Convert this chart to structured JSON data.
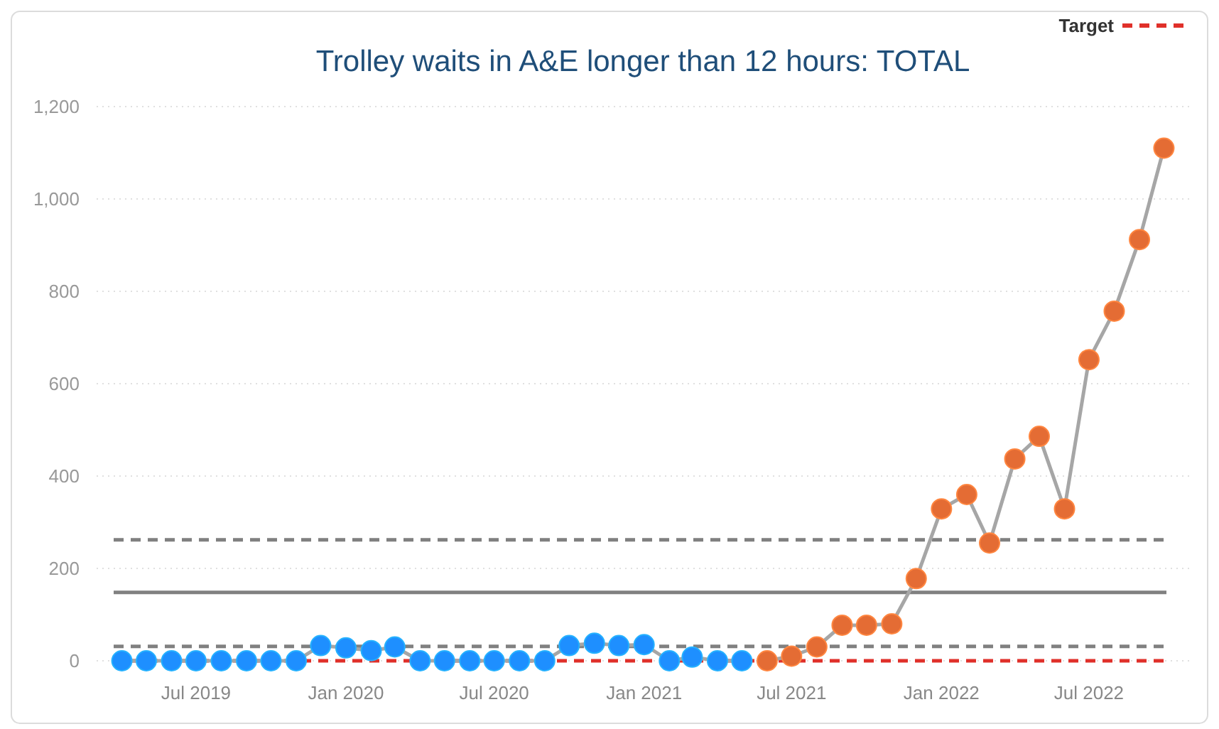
{
  "chart_data": {
    "type": "line",
    "title": "Trolley waits in A&E longer than 12 hours: TOTAL",
    "series": [
      {
        "color": "#1e8fff",
        "x": [
          "2019-04",
          "2019-05",
          "2019-06",
          "2019-07",
          "2019-08",
          "2019-09",
          "2019-10",
          "2019-11",
          "2019-12",
          "2020-01",
          "2020-02",
          "2020-03",
          "2020-04",
          "2020-05",
          "2020-06",
          "2020-07",
          "2020-08",
          "2020-09",
          "2020-10",
          "2020-11",
          "2020-12",
          "2021-01",
          "2021-02",
          "2021-03",
          "2021-04",
          "2021-05"
        ],
        "values": [
          0,
          0,
          0,
          0,
          0,
          0,
          0,
          0,
          33,
          28,
          22,
          30,
          0,
          0,
          0,
          0,
          0,
          0,
          33,
          38,
          33,
          35,
          0,
          8,
          0,
          0
        ]
      },
      {
        "color": "#e46c34",
        "x": [
          "2021-06",
          "2021-07",
          "2021-08",
          "2021-09",
          "2021-10",
          "2021-11",
          "2021-12",
          "2022-01",
          "2022-02",
          "2022-03",
          "2022-04",
          "2022-05",
          "2022-06",
          "2022-07",
          "2022-08",
          "2022-09",
          "2022-10"
        ],
        "values": [
          0,
          10,
          30,
          77,
          77,
          80,
          178,
          329,
          360,
          255,
          437,
          486,
          329,
          652,
          757,
          912,
          1110
        ]
      }
    ],
    "xlim": [
      "2019-03",
      "2022-11"
    ],
    "xticks": [
      {
        "value": "2019-07",
        "label": "Jul 2019"
      },
      {
        "value": "2020-01",
        "label": "Jan 2020"
      },
      {
        "value": "2020-07",
        "label": "Jul 2020"
      },
      {
        "value": "2021-01",
        "label": "Jan 2021"
      },
      {
        "value": "2021-07",
        "label": "Jul 2021"
      },
      {
        "value": "2022-01",
        "label": "Jan 2022"
      },
      {
        "value": "2022-07",
        "label": "Jul 2022"
      }
    ],
    "ylim": [
      0,
      1200
    ],
    "yticks": [
      0,
      200,
      400,
      600,
      800,
      {
        "value": 1000,
        "label": "1,000"
      },
      {
        "value": 1200,
        "label": "1,200"
      }
    ],
    "ref_lines": [
      {
        "axis": "y",
        "value": 262,
        "color": "#808080",
        "line_style": "dashed"
      },
      {
        "axis": "y",
        "value": 148,
        "color": "#808080",
        "line_style": "solid"
      },
      {
        "axis": "y",
        "value": 31,
        "color": "#808080",
        "line_style": "dashed"
      },
      {
        "axis": "y",
        "value": 0,
        "label": "Target",
        "color": "#e0302a",
        "line_style": "dashed"
      }
    ],
    "grid": "y",
    "legend": "top right",
    "marker": "circle",
    "line_style": "solid"
  }
}
